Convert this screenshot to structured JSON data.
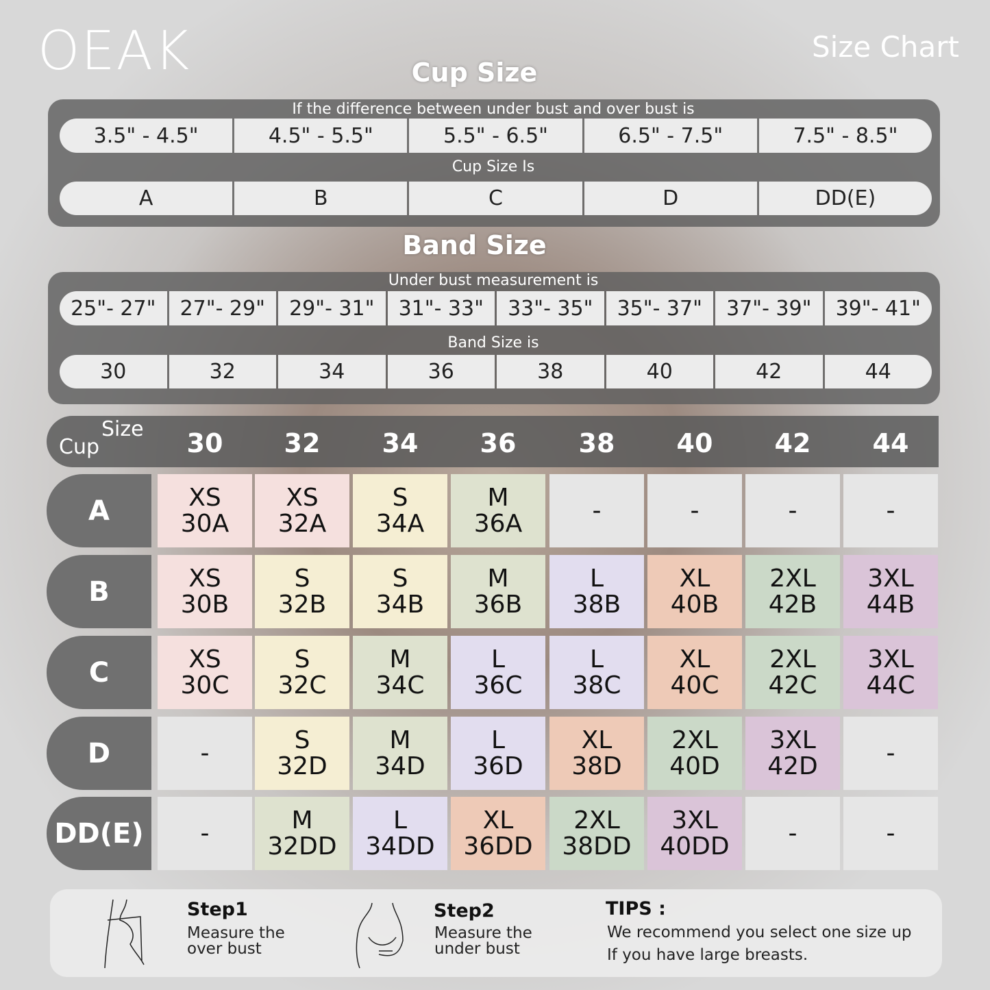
{
  "brand": "OEAK",
  "title": "Size Chart",
  "cup_section": {
    "heading": "Cup Size",
    "caption1": "If the  difference between under bust and over bust is",
    "ranges": [
      "3.5\" -  4.5\"",
      "4.5\" -  5.5\"",
      "5.5\" -  6.5\"",
      "6.5\" -  7.5\"",
      "7.5\" -  8.5\""
    ],
    "caption2": "Cup Size Is",
    "cups": [
      "A",
      "B",
      "C",
      "D",
      "DD(E)"
    ]
  },
  "band_section": {
    "heading": "Band Size",
    "caption1": "Under bust measurement is",
    "ranges": [
      "25\"- 27\"",
      "27\"- 29\"",
      "29\"- 31\"",
      "31\"- 33\"",
      "33\"- 35\"",
      "35\"- 37\"",
      "37\"- 39\"",
      "39\"- 41\""
    ],
    "caption2": "Band Size is",
    "bands": [
      "30",
      "32",
      "34",
      "36",
      "38",
      "40",
      "42",
      "44"
    ]
  },
  "grid": {
    "corner_size": "Size",
    "corner_cup": "Cup",
    "columns": [
      "30",
      "32",
      "34",
      "36",
      "38",
      "40",
      "42",
      "44"
    ],
    "tier_colors": {
      "XS": "#f5e0de",
      "S": "#f5eed3",
      "M": "#dee2cf",
      "L": "#e2ddef",
      "XL": "#eecab7",
      "2XL": "#cbd9c8",
      "3XL": "#dac4d8",
      "-": "#e6e6e6"
    },
    "rows": [
      {
        "cup": "A",
        "cells": [
          [
            "XS",
            "30A"
          ],
          [
            "XS",
            "32A"
          ],
          [
            "S",
            "34A"
          ],
          [
            "M",
            "36A"
          ],
          [
            "-",
            ""
          ],
          [
            "-",
            ""
          ],
          [
            "-",
            ""
          ],
          [
            "-",
            ""
          ]
        ]
      },
      {
        "cup": "B",
        "cells": [
          [
            "XS",
            "30B"
          ],
          [
            "S",
            "32B"
          ],
          [
            "S",
            "34B"
          ],
          [
            "M",
            "36B"
          ],
          [
            "L",
            "38B"
          ],
          [
            "XL",
            "40B"
          ],
          [
            "2XL",
            "42B"
          ],
          [
            "3XL",
            "44B"
          ]
        ]
      },
      {
        "cup": "C",
        "cells": [
          [
            "XS",
            "30C"
          ],
          [
            "S",
            "32C"
          ],
          [
            "M",
            "34C"
          ],
          [
            "L",
            "36C"
          ],
          [
            "L",
            "38C"
          ],
          [
            "XL",
            "40C"
          ],
          [
            "2XL",
            "42C"
          ],
          [
            "3XL",
            "44C"
          ]
        ]
      },
      {
        "cup": "D",
        "cells": [
          [
            "-",
            ""
          ],
          [
            "S",
            "32D"
          ],
          [
            "M",
            "34D"
          ],
          [
            "L",
            "36D"
          ],
          [
            "XL",
            "38D"
          ],
          [
            "2XL",
            "40D"
          ],
          [
            "3XL",
            "42D"
          ],
          [
            "-",
            ""
          ]
        ]
      },
      {
        "cup": "DD(E)",
        "cells": [
          [
            "-",
            ""
          ],
          [
            "M",
            "32DD"
          ],
          [
            "L",
            "34DD"
          ],
          [
            "XL",
            "36DD"
          ],
          [
            "2XL",
            "38DD"
          ],
          [
            "3XL",
            "40DD"
          ],
          [
            "-",
            ""
          ],
          [
            "-",
            ""
          ]
        ]
      }
    ]
  },
  "footer": {
    "step1_title": "Step1",
    "step1_text": "Measure the\nover bust",
    "step2_title": "Step2",
    "step2_text": "Measure the\nunder bust",
    "tips_title": "TIPS :",
    "tips_line1": "We recommend you select one size up",
    "tips_line2": "If you have large breasts."
  }
}
